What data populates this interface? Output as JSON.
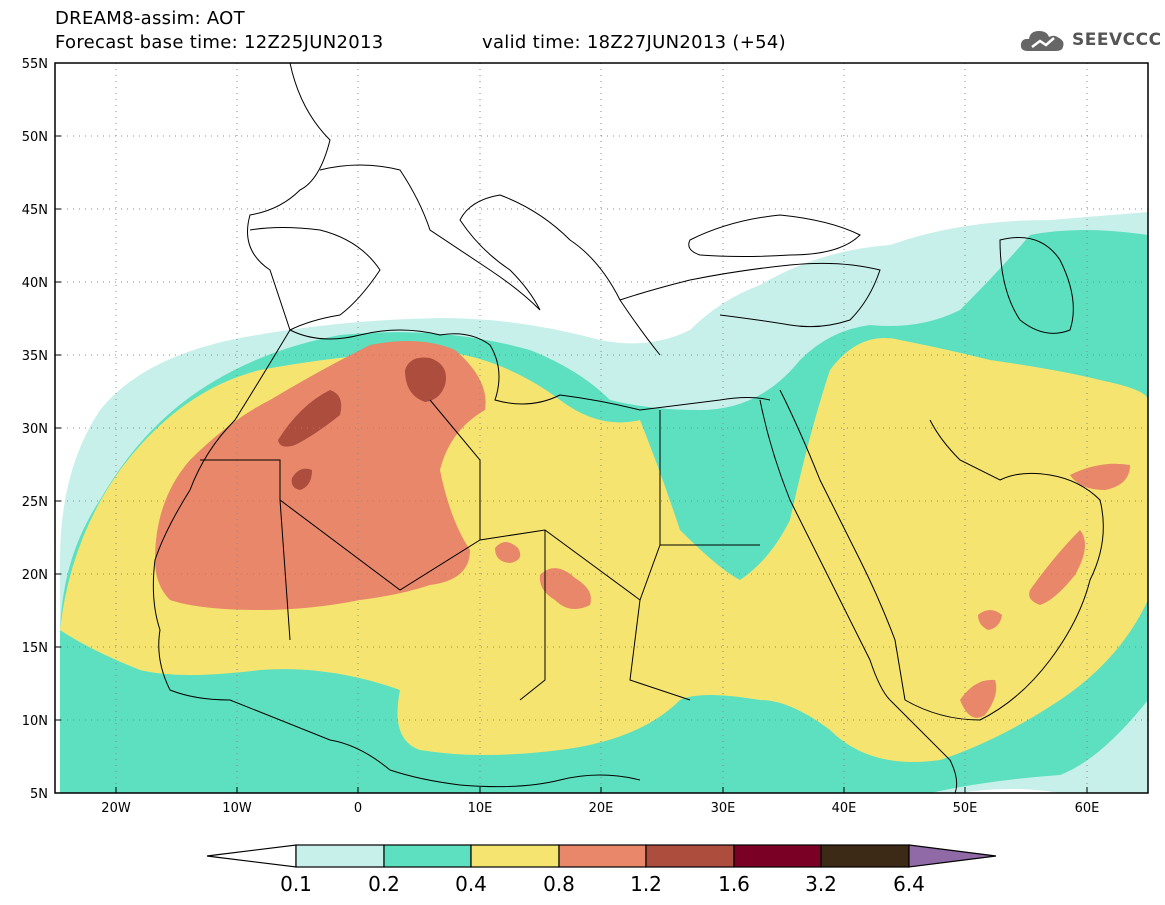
{
  "header": {
    "title": "DREAM8-assim: AOT",
    "base_time": "Forecast base time: 12Z25JUN2013",
    "valid_time": "valid time: 18Z27JUN2013 (+54)"
  },
  "logo": {
    "text": "SEEVCCC",
    "icon": "cloud-icon"
  },
  "map": {
    "latitude_labels": [
      "55N",
      "50N",
      "45N",
      "40N",
      "35N",
      "30N",
      "25N",
      "20N",
      "15N",
      "10N",
      "5N"
    ],
    "longitude_labels": [
      "20W",
      "10W",
      "0",
      "10E",
      "20E",
      "30E",
      "40E",
      "50E",
      "60E"
    ],
    "extent": {
      "lon": [
        -25,
        65
      ],
      "lat": [
        5,
        55
      ]
    },
    "grid": "dotted"
  },
  "colorbar": {
    "levels": [
      "0.1",
      "0.2",
      "0.4",
      "0.8",
      "1.2",
      "1.6",
      "3.2",
      "6.4"
    ],
    "colors": {
      "under": "#ffffff",
      "b1": "#c8f0ea",
      "b2": "#5de0c0",
      "b3": "#f5e470",
      "b4": "#e8876a",
      "b5": "#ad4d3e",
      "b6": "#7a0026",
      "b7": "#3d2a16",
      "over": "#8f6aa7"
    }
  }
}
